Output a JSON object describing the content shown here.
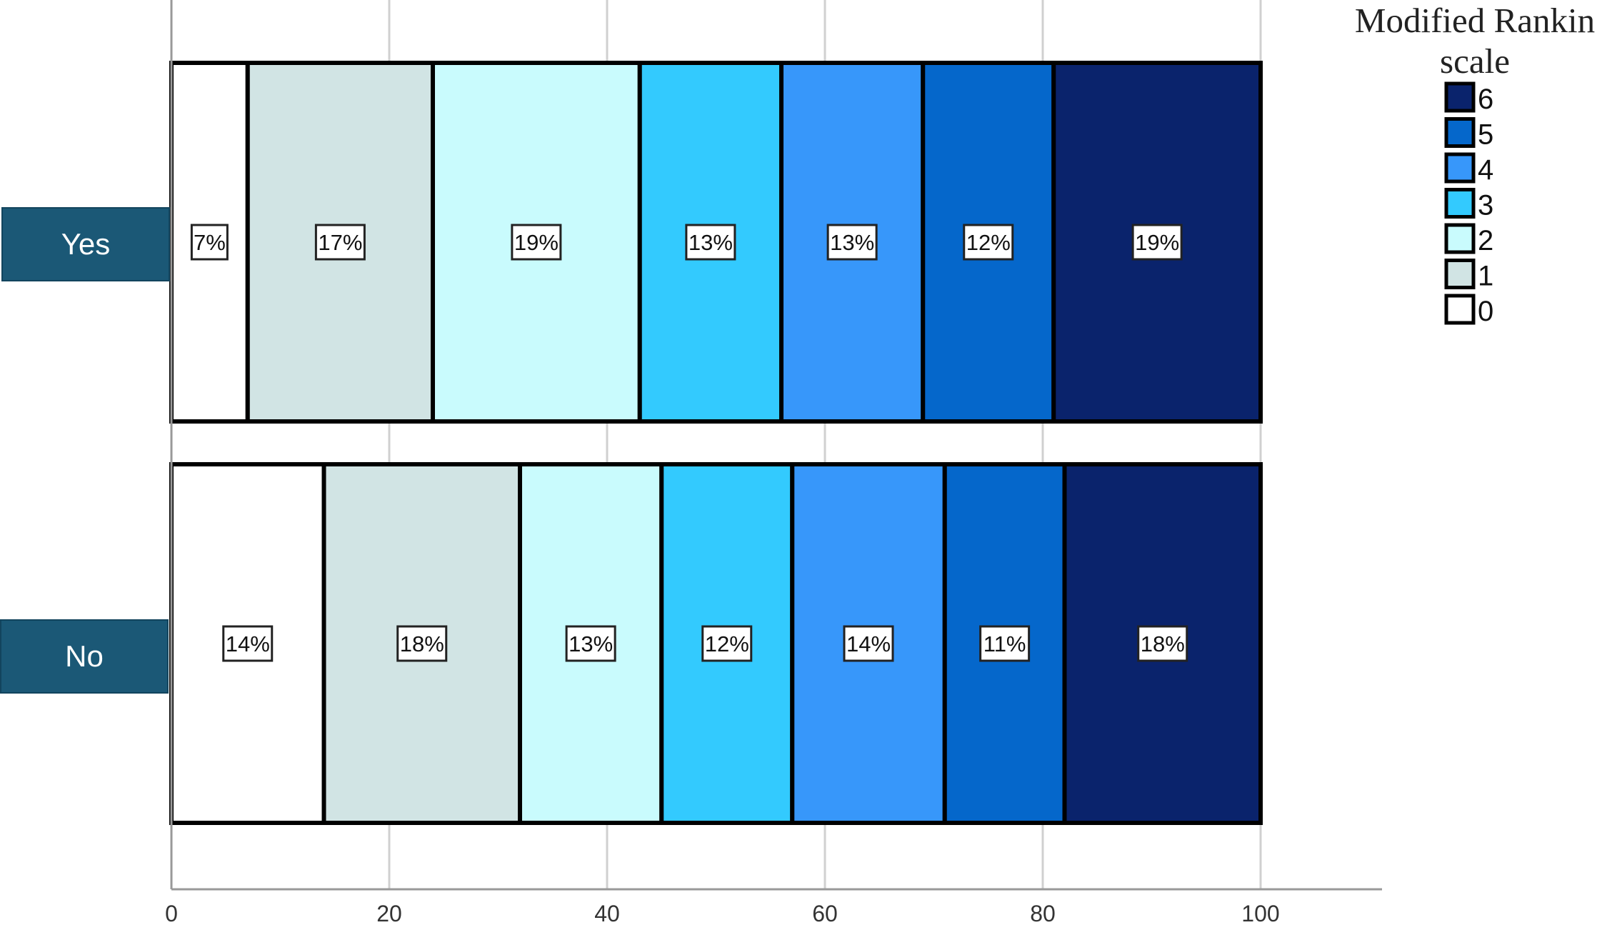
{
  "chart_data": {
    "type": "bar",
    "orientation": "horizontal",
    "stacked": true,
    "categories": [
      "Yes",
      "No"
    ],
    "series": [
      {
        "name": "0",
        "color": "#ffffff",
        "values": [
          7,
          14
        ],
        "labels": [
          "7%",
          "14%"
        ]
      },
      {
        "name": "1",
        "color": "#d1e4e4",
        "values": [
          17,
          18
        ],
        "labels": [
          "17%",
          "18%"
        ]
      },
      {
        "name": "2",
        "color": "#c9fbfd",
        "values": [
          19,
          13
        ],
        "labels": [
          "19%",
          "13%"
        ]
      },
      {
        "name": "3",
        "color": "#33cafe",
        "values": [
          13,
          12
        ],
        "labels": [
          "13%",
          "12%"
        ]
      },
      {
        "name": "4",
        "color": "#3797fa",
        "values": [
          13,
          14
        ],
        "labels": [
          "13%",
          "14%"
        ]
      },
      {
        "name": "5",
        "color": "#0567cb",
        "values": [
          12,
          11
        ],
        "labels": [
          "12%",
          "11%"
        ]
      },
      {
        "name": "6",
        "color": "#0a236c",
        "values": [
          19,
          18
        ],
        "labels": [
          "19%",
          "18%"
        ]
      }
    ],
    "xlim": [
      0,
      100
    ],
    "xticks": [
      "0",
      "20",
      "40",
      "60",
      "80",
      "100"
    ],
    "grid": "vertical",
    "legend": {
      "title": "Modified Rankin scale",
      "position": "top-right",
      "order": [
        "6",
        "5",
        "4",
        "3",
        "2",
        "1",
        "0"
      ]
    }
  }
}
